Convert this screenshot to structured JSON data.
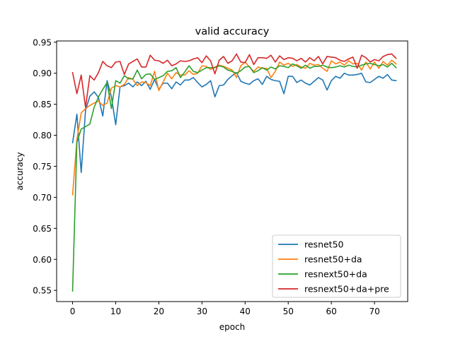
{
  "chart_data": {
    "type": "line",
    "title": "valid accuracy",
    "xlabel": "epoch",
    "ylabel": "accuracy",
    "xlim": [
      -3.7,
      77.7
    ],
    "ylim": [
      0.532,
      0.952
    ],
    "xticks": [
      0,
      10,
      20,
      30,
      40,
      50,
      60,
      70
    ],
    "yticks": [
      0.55,
      0.6,
      0.65,
      0.7,
      0.75,
      0.8,
      0.85,
      0.9,
      0.95
    ],
    "ytick_labels": [
      "0.55",
      "0.60",
      "0.65",
      "0.70",
      "0.75",
      "0.80",
      "0.85",
      "0.90",
      "0.95"
    ],
    "grid": false,
    "legend_position": "lower right",
    "series": [
      {
        "name": "resnet50",
        "color": "#1f77b4",
        "values": [
          0.788,
          0.834,
          0.74,
          0.84,
          0.863,
          0.87,
          0.861,
          0.831,
          0.888,
          0.862,
          0.817,
          0.878,
          0.88,
          0.884,
          0.878,
          0.886,
          0.88,
          0.887,
          0.874,
          0.89,
          0.874,
          0.884,
          0.884,
          0.875,
          0.886,
          0.881,
          0.889,
          0.889,
          0.893,
          0.885,
          0.878,
          0.882,
          0.888,
          0.862,
          0.88,
          0.881,
          0.89,
          0.896,
          0.901,
          0.887,
          0.884,
          0.882,
          0.888,
          0.891,
          0.882,
          0.895,
          0.89,
          0.888,
          0.887,
          0.867,
          0.895,
          0.895,
          0.885,
          0.889,
          0.884,
          0.881,
          0.887,
          0.893,
          0.889,
          0.873,
          0.888,
          0.895,
          0.892,
          0.9,
          0.897,
          0.897,
          0.898,
          0.9,
          0.886,
          0.885,
          0.89,
          0.895,
          0.892,
          0.898,
          0.889,
          0.888
        ]
      },
      {
        "name": "resnet50+da",
        "color": "#ff7f0e",
        "values": [
          0.704,
          0.793,
          0.836,
          0.843,
          0.848,
          0.852,
          0.855,
          0.848,
          0.852,
          0.876,
          0.88,
          0.878,
          0.882,
          0.893,
          0.89,
          0.88,
          0.886,
          0.885,
          0.88,
          0.903,
          0.872,
          0.886,
          0.9,
          0.891,
          0.901,
          0.897,
          0.897,
          0.904,
          0.898,
          0.9,
          0.912,
          0.911,
          0.906,
          0.91,
          0.913,
          0.911,
          0.908,
          0.905,
          0.893,
          0.912,
          0.918,
          0.91,
          0.903,
          0.91,
          0.908,
          0.908,
          0.893,
          0.903,
          0.918,
          0.913,
          0.916,
          0.911,
          0.914,
          0.91,
          0.908,
          0.916,
          0.913,
          0.914,
          0.908,
          0.903,
          0.92,
          0.915,
          0.918,
          0.913,
          0.92,
          0.915,
          0.916,
          0.905,
          0.918,
          0.907,
          0.918,
          0.908,
          0.919,
          0.913,
          0.921,
          0.915
        ]
      },
      {
        "name": "resnext50+da",
        "color": "#2ca02c",
        "values": [
          0.549,
          0.789,
          0.81,
          0.814,
          0.818,
          0.845,
          0.862,
          0.874,
          0.885,
          0.843,
          0.888,
          0.884,
          0.896,
          0.891,
          0.891,
          0.905,
          0.891,
          0.898,
          0.899,
          0.89,
          0.893,
          0.896,
          0.903,
          0.904,
          0.909,
          0.893,
          0.902,
          0.912,
          0.903,
          0.901,
          0.905,
          0.909,
          0.909,
          0.909,
          0.912,
          0.91,
          0.905,
          0.903,
          0.9,
          0.904,
          0.91,
          0.911,
          0.901,
          0.904,
          0.909,
          0.905,
          0.91,
          0.907,
          0.912,
          0.911,
          0.909,
          0.915,
          0.912,
          0.908,
          0.913,
          0.908,
          0.911,
          0.911,
          0.913,
          0.91,
          0.909,
          0.91,
          0.912,
          0.91,
          0.913,
          0.911,
          0.91,
          0.913,
          0.915,
          0.916,
          0.914,
          0.912,
          0.914,
          0.91,
          0.916,
          0.909
        ]
      },
      {
        "name": "resnext50+da+pre",
        "color": "#d62728",
        "values": [
          0.901,
          0.867,
          0.897,
          0.845,
          0.896,
          0.889,
          0.901,
          0.919,
          0.912,
          0.909,
          0.918,
          0.919,
          0.898,
          0.915,
          0.919,
          0.923,
          0.91,
          0.91,
          0.929,
          0.921,
          0.92,
          0.916,
          0.921,
          0.912,
          0.915,
          0.92,
          0.919,
          0.92,
          0.923,
          0.925,
          0.917,
          0.928,
          0.92,
          0.899,
          0.921,
          0.927,
          0.916,
          0.92,
          0.931,
          0.918,
          0.917,
          0.93,
          0.914,
          0.925,
          0.925,
          0.924,
          0.929,
          0.918,
          0.928,
          0.922,
          0.925,
          0.924,
          0.92,
          0.924,
          0.918,
          0.925,
          0.92,
          0.927,
          0.915,
          0.927,
          0.926,
          0.925,
          0.921,
          0.919,
          0.923,
          0.926,
          0.908,
          0.929,
          0.925,
          0.918,
          0.922,
          0.92,
          0.927,
          0.93,
          0.931,
          0.924
        ]
      }
    ]
  }
}
